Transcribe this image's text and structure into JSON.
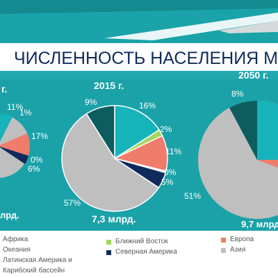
{
  "title": "ЧИСЛЕННОСТЬ НАСЕЛЕНИЯ М",
  "colors": {
    "teal": "#1aa3a8",
    "dark_teal": "#0e6a6e",
    "light_gray": "#d9dde0"
  },
  "legend": {
    "col1": [
      "Африка",
      "Океания",
      "Латинская Америка и",
      "Карибский бассейн"
    ],
    "col2": [
      "Ближний Восток",
      "Северная Америка"
    ],
    "col3": [
      "Европа",
      "Азия"
    ]
  },
  "chart_data": [
    {
      "type": "pie",
      "title": "г.",
      "total_label": "лрд.",
      "slice_labels": [
        "11%",
        "1%",
        "17%",
        "0%",
        "6%"
      ]
    },
    {
      "type": "pie",
      "title": "2015 г.",
      "total_label": "7,3 млрд.",
      "series": [
        {
          "name": "Африка",
          "value": 16,
          "label": "16%",
          "color": "#17b3bb"
        },
        {
          "name": "Ближний Восток",
          "value": 2,
          "label": "2%",
          "color": "#a4d65e"
        },
        {
          "name": "Европа",
          "value": 11,
          "label": "11%",
          "color": "#f07c6c"
        },
        {
          "name": "Океания",
          "value": 0.5,
          "label": "0%",
          "color": "#ffffff"
        },
        {
          "name": "Северная Америка",
          "value": 5,
          "label": "5%",
          "color": "#0f2b5b"
        },
        {
          "name": "Азия",
          "value": 57,
          "label": "57%",
          "color": "#bfbfbf"
        },
        {
          "name": "Латинская Америка и Карибский бассейн",
          "value": 9,
          "label": "9%",
          "color": "#0d5d5f"
        }
      ]
    },
    {
      "type": "pie",
      "title": "2050 г.",
      "total_label": "9,7 млрд.",
      "slice_labels": [
        "8%",
        "51%"
      ]
    }
  ]
}
